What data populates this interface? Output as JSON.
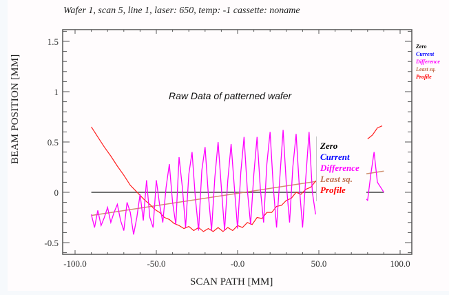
{
  "chart_data": {
    "type": "line",
    "title": "Wafer 1, scan 5, line 1, laser: 650, temp: -1 cassette: noname",
    "annotation": "Raw Data of patterned wafer",
    "xlabel": "SCAN PATH    [MM]",
    "ylabel": "BEAM POSITION    [MM]",
    "xlim": [
      -107,
      108
    ],
    "ylim": [
      -0.62,
      1.62
    ],
    "xticks": [
      -100,
      -50,
      0,
      50,
      100
    ],
    "xtick_labels": [
      "-100.0",
      "-50.0",
      "-0.0",
      "50.0",
      "100.0"
    ],
    "yticks": [
      -0.5,
      0,
      0.5,
      1,
      1.5
    ],
    "ytick_labels": [
      "-0.5",
      "0",
      "0.5",
      "1",
      "1.5"
    ],
    "grid": false,
    "legend_placement": "right",
    "legend": [
      {
        "label": "Zero",
        "color": "#000000"
      },
      {
        "label": "Current",
        "color": "#0000ff"
      },
      {
        "label": "Difference",
        "color": "#ff00ff"
      },
      {
        "label": "Least sq.",
        "color": "#c07050"
      },
      {
        "label": "Profile",
        "color": "#ff0000"
      }
    ],
    "series": [
      {
        "name": "Zero",
        "color": "#707070",
        "x": [
          -90,
          90
        ],
        "y": [
          0,
          0
        ]
      },
      {
        "name": "Least sq.",
        "color": "#d09070",
        "x": [
          -90,
          90
        ],
        "y": [
          -0.23,
          0.21
        ]
      },
      {
        "name": "Profile",
        "color": "#ff2020",
        "x": [
          -90,
          -86,
          -82,
          -78,
          -74,
          -70,
          -66,
          -63,
          -60,
          -57,
          -54,
          -51,
          -48,
          -45,
          -42,
          -39,
          -36,
          -33,
          -30,
          -27,
          -24,
          -21,
          -18,
          -15,
          -12,
          -9,
          -6,
          -3,
          0,
          3,
          6,
          9,
          12,
          15,
          18,
          21,
          24,
          27,
          30,
          33,
          36,
          39,
          42,
          45,
          48,
          51,
          80,
          83,
          86,
          89
        ],
        "y": [
          0.65,
          0.55,
          0.45,
          0.36,
          0.26,
          0.17,
          0.07,
          0.02,
          -0.03,
          -0.08,
          -0.12,
          -0.17,
          -0.2,
          -0.25,
          -0.27,
          -0.31,
          -0.33,
          -0.36,
          -0.34,
          -0.38,
          -0.35,
          -0.39,
          -0.36,
          -0.39,
          -0.35,
          -0.39,
          -0.35,
          -0.38,
          -0.33,
          -0.35,
          -0.3,
          -0.32,
          -0.25,
          -0.26,
          -0.2,
          -0.2,
          -0.14,
          -0.13,
          -0.08,
          -0.06,
          0.0,
          -0.02,
          0.03,
          0.05,
          0.11,
          0.14,
          0.53,
          0.57,
          0.64,
          0.66
        ]
      },
      {
        "name": "Difference",
        "color": "#ff00ff",
        "x": [
          -90,
          -88,
          -86,
          -84,
          -82,
          -80,
          -78,
          -76,
          -74,
          -72,
          -70,
          -68,
          -66,
          -64,
          -62,
          -60,
          -58,
          -56,
          -54,
          -52,
          -50,
          -48,
          -46,
          -44,
          -42,
          -40,
          -38,
          -36,
          -34,
          -32,
          -30,
          -28,
          -26,
          -24,
          -22,
          -20,
          -18,
          -16,
          -14,
          -12,
          -10,
          -8,
          -6,
          -4,
          -2,
          0,
          2,
          4,
          6,
          8,
          10,
          12,
          14,
          16,
          18,
          20,
          22,
          24,
          26,
          28,
          30,
          32,
          34,
          36,
          38,
          40,
          42,
          44,
          46,
          48,
          78,
          80,
          82,
          84,
          86,
          88,
          90
        ],
        "y": [
          -0.22,
          -0.35,
          -0.18,
          -0.33,
          -0.25,
          -0.15,
          -0.3,
          -0.2,
          -0.12,
          -0.28,
          -0.38,
          -0.1,
          -0.2,
          -0.42,
          -0.25,
          -0.02,
          -0.28,
          0.12,
          -0.25,
          -0.35,
          0.12,
          -0.12,
          -0.3,
          0.05,
          0.28,
          -0.1,
          -0.32,
          0.35,
          0.05,
          -0.35,
          0.18,
          0.4,
          -0.05,
          -0.38,
          0.22,
          0.45,
          -0.02,
          -0.38,
          0.15,
          0.5,
          0.05,
          -0.38,
          0.12,
          0.48,
          0.05,
          -0.36,
          0.2,
          0.55,
          0.02,
          -0.32,
          0.18,
          0.55,
          0.04,
          -0.3,
          0.28,
          0.6,
          0.05,
          -0.35,
          0.15,
          0.62,
          0.08,
          -0.3,
          0.25,
          0.58,
          0.05,
          -0.35,
          0.15,
          0.6,
          0.0,
          -0.22,
          -0.05,
          -0.08,
          0.18,
          0.4,
          0.1,
          0.05,
          0.0
        ]
      }
    ]
  }
}
